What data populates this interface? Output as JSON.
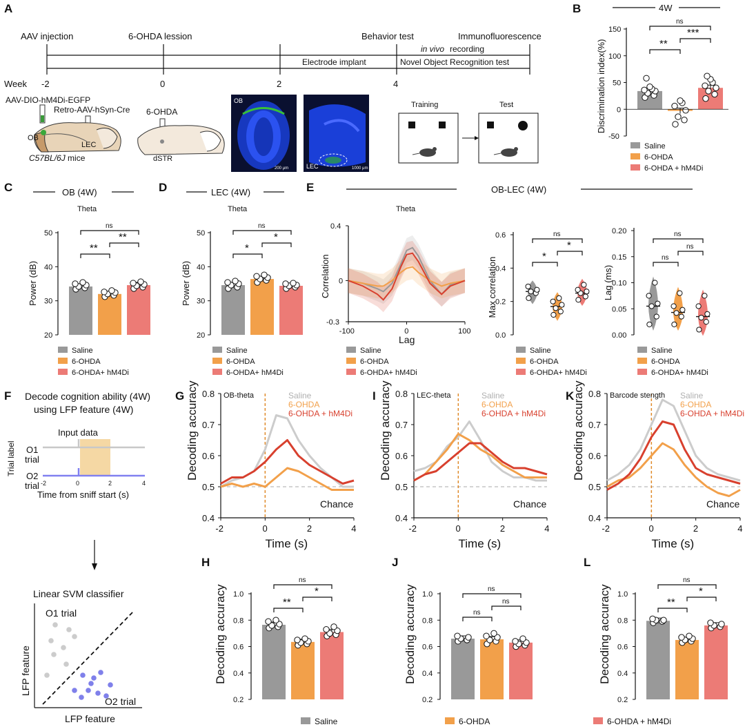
{
  "colors": {
    "saline": "#999999",
    "ohda": "#f2a04a",
    "hm4di": "#ec7b76",
    "hm4di_line": "#d8402e",
    "saline_line": "#cccccc",
    "brain": "#1a3fd8",
    "mouse": "#444444"
  },
  "panelA": {
    "letter": "A",
    "events": [
      "AAV injection",
      "6-OHDA lession",
      "Behavior test",
      "Immunofluorescence"
    ],
    "in_vivo": "in vivo",
    "recording": "recording",
    "electrode": "Electrode implant",
    "novel": "Novel Object Recognition test",
    "week_label": "Week",
    "weeks": [
      "-2",
      "0",
      "2",
      "4"
    ],
    "aav": "AAV-DIO-hM4Di-EGFP",
    "retro": "Retro-AAV-hSyn-Cre",
    "ohda": "6-OHDA",
    "ob": "OB",
    "lec": "LEC",
    "dstr": "dSTR",
    "mice_italic": "C57BL/6J",
    "mice_rest": " mice",
    "img1_label": "OB",
    "img1_scale": "200 μm",
    "img2_label": "LEC",
    "img2_scale": "1000 μm",
    "training": "Training",
    "test": "Test"
  },
  "legend": {
    "saline": "Saline",
    "ohda": "6-OHDA",
    "hm4di": "6-OHDA + hM4Di",
    "hm4di_alt": "6-OHDA+ hM4Di"
  },
  "panelB": {
    "letter": "B",
    "header": "4W",
    "ylabel": "Discrimination index(%)",
    "ticks": [
      "150",
      "100",
      "50",
      "0",
      "-50"
    ],
    "sig": [
      "ns",
      "**",
      "***"
    ],
    "chart_data": {
      "type": "bar",
      "categories": [
        "Saline",
        "6-OHDA",
        "6-OHDA + hM4Di"
      ],
      "values": [
        34,
        -3,
        40
      ],
      "ylim": [
        -50,
        150
      ],
      "points": [
        [
          22,
          26,
          30,
          34,
          36,
          38,
          42,
          58
        ],
        [
          -28,
          -20,
          -14,
          -2,
          6,
          12,
          16
        ],
        [
          20,
          28,
          34,
          40,
          44,
          50,
          56,
          62
        ]
      ]
    }
  },
  "panelC": {
    "letter": "C",
    "header": "OB (4W)",
    "sub": "Theta",
    "ylabel": "Power (dB)",
    "ticks": [
      "50",
      "40",
      "30",
      "20"
    ],
    "sig": [
      "ns",
      "**",
      "**"
    ],
    "chart_data": {
      "type": "bar",
      "categories": [
        "Saline",
        "6-OHDA",
        "6-OHDA+ hM4Di"
      ],
      "values": [
        34.2,
        32.0,
        34.6
      ],
      "ylim": [
        20,
        50
      ],
      "points": [
        [
          33.4,
          33.8,
          34.2,
          34.6,
          35.0,
          35.4
        ],
        [
          31.2,
          31.6,
          32.0,
          32.4,
          32.6,
          33.0
        ],
        [
          33.6,
          34.0,
          34.4,
          34.8,
          35.2,
          35.6
        ]
      ]
    }
  },
  "panelD": {
    "letter": "D",
    "header": "LEC (4W)",
    "sub": "Theta",
    "ylabel": "Power (dB)",
    "ticks": [
      "50",
      "40",
      "30",
      "20"
    ],
    "sig": [
      "ns",
      "*",
      "*"
    ],
    "chart_data": {
      "type": "bar",
      "categories": [
        "Saline",
        "6-OHDA",
        "6-OHDA+ hM4Di"
      ],
      "values": [
        34.6,
        36.4,
        34.4
      ],
      "ylim": [
        20,
        50
      ],
      "points": [
        [
          33.6,
          34.0,
          34.6,
          35.0,
          35.4,
          35.8
        ],
        [
          35.4,
          36.0,
          36.4,
          36.8,
          37.2,
          37.6
        ],
        [
          33.6,
          34.0,
          34.4,
          34.6,
          35.0,
          35.2
        ]
      ]
    }
  },
  "panelE": {
    "letter": "E",
    "header": "OB-LEC (4W)",
    "sub": "Theta",
    "xcorr": {
      "ylabel": "Correlation",
      "xlabel": "Lag",
      "yticks": [
        "0.4",
        "0",
        "-0.3"
      ],
      "xticks": [
        "-100",
        "0",
        "100"
      ],
      "chart_data": {
        "type": "line",
        "x": [
          -100,
          -75,
          -50,
          -40,
          -25,
          -10,
          0,
          10,
          20,
          40,
          60,
          75,
          100
        ],
        "series": [
          {
            "name": "Saline",
            "values": [
              0,
              -0.02,
              -0.06,
              -0.08,
              -0.02,
              0.12,
              0.22,
              0.24,
              0.18,
              0.0,
              -0.1,
              -0.03,
              0
            ]
          },
          {
            "name": "6-OHDA",
            "values": [
              0,
              -0.02,
              -0.04,
              -0.04,
              0.0,
              0.06,
              0.09,
              0.1,
              0.06,
              0,
              -0.04,
              -0.02,
              0
            ]
          },
          {
            "name": "6-OHDA+ hM4Di",
            "values": [
              0,
              -0.04,
              -0.1,
              -0.14,
              -0.06,
              0.1,
              0.19,
              0.2,
              0.14,
              -0.02,
              -0.1,
              -0.04,
              0
            ]
          }
        ],
        "ylim": [
          -0.3,
          0.4
        ],
        "xlim": [
          -100,
          100
        ]
      }
    },
    "maxcorr": {
      "ylabel": "Max correlation",
      "ticks": [
        "0.6",
        "0.4",
        "0.2",
        "0.0"
      ],
      "sig": [
        "ns",
        "*",
        "*"
      ],
      "chart_data": {
        "type": "scatter",
        "categories": [
          "Saline",
          "6-OHDA",
          "6-OHDA+ hM4Di"
        ],
        "medians": [
          0.26,
          0.17,
          0.25
        ],
        "ylim": [
          0,
          0.6
        ],
        "points": [
          [
            0.22,
            0.25,
            0.26,
            0.27,
            0.29
          ],
          [
            0.12,
            0.14,
            0.16,
            0.18,
            0.2,
            0.22
          ],
          [
            0.21,
            0.23,
            0.25,
            0.26,
            0.27,
            0.3
          ]
        ]
      }
    },
    "lag": {
      "ylabel": "Lag (ms)",
      "ticks": [
        "0.20",
        "0.15",
        "0.10",
        "0.05",
        "0.00"
      ],
      "sig": [
        "ns",
        "ns",
        "ns"
      ],
      "chart_data": {
        "type": "scatter",
        "categories": [
          "Saline",
          "6-OHDA",
          "6-OHDA+ hM4Di"
        ],
        "medians": [
          0.055,
          0.043,
          0.035
        ],
        "ylim": [
          0,
          0.2
        ],
        "points": [
          [
            0.02,
            0.035,
            0.055,
            0.06,
            0.075,
            0.1
          ],
          [
            0.02,
            0.035,
            0.042,
            0.048,
            0.055,
            0.08
          ],
          [
            0.01,
            0.025,
            0.033,
            0.04,
            0.055,
            0.075
          ]
        ]
      }
    }
  },
  "panelF": {
    "letter": "F",
    "title1": "Decode cognition ability (4W)",
    "title2": "using LFP feature (4W)",
    "input": "Input data",
    "trial_label": "Trial label",
    "o1": "O1",
    "o2": "O2",
    "trial": "trial",
    "xticks": [
      "-2",
      "0",
      "2",
      "4"
    ],
    "xlabel": "Time from sniff start (s)",
    "svm": "Linear SVM classifier",
    "o1t": "O1 trial",
    "o2t": "O2 trial",
    "lfp": "LFP feature"
  },
  "decoding": {
    "ylabel": "Decoding accuracy",
    "xlabel": "Time (s)",
    "yticks": [
      "0.8",
      "0.7",
      "0.6",
      "0.5",
      "0.4"
    ],
    "xticks": [
      "-2",
      "0",
      "2",
      "4"
    ],
    "chance": "Chance",
    "G": {
      "letter": "G",
      "sub": "OB-theta",
      "chart_data": {
        "type": "line",
        "x": [
          -2,
          -1.5,
          -1,
          -0.5,
          0,
          0.5,
          1,
          1.5,
          2,
          2.5,
          3,
          3.5,
          4
        ],
        "series": [
          {
            "name": "Saline",
            "values": [
              0.5,
              0.52,
              0.53,
              0.55,
              0.62,
              0.73,
              0.72,
              0.65,
              0.6,
              0.56,
              0.53,
              0.5,
              0.5
            ]
          },
          {
            "name": "6-OHDA",
            "values": [
              0.5,
              0.51,
              0.5,
              0.51,
              0.5,
              0.53,
              0.56,
              0.55,
              0.53,
              0.51,
              0.49,
              0.49,
              0.49
            ]
          },
          {
            "name": "6-OHDA + hM4Di",
            "values": [
              0.51,
              0.53,
              0.53,
              0.55,
              0.58,
              0.62,
              0.65,
              0.6,
              0.57,
              0.55,
              0.53,
              0.51,
              0.52
            ]
          }
        ],
        "ylim": [
          0.4,
          0.8
        ],
        "xlim": [
          -2,
          4
        ]
      }
    },
    "I": {
      "letter": "I",
      "sub": "LEC-theta",
      "chart_data": {
        "type": "line",
        "x": [
          -2,
          -1.5,
          -1,
          -0.5,
          0,
          0.5,
          1,
          1.5,
          2,
          2.5,
          3,
          3.5,
          4
        ],
        "series": [
          {
            "name": "Saline",
            "values": [
              0.55,
              0.56,
              0.58,
              0.63,
              0.66,
              0.71,
              0.65,
              0.58,
              0.55,
              0.53,
              0.53,
              0.52,
              0.52
            ]
          },
          {
            "name": "6-OHDA",
            "values": [
              0.52,
              0.54,
              0.58,
              0.62,
              0.67,
              0.65,
              0.62,
              0.6,
              0.57,
              0.55,
              0.53,
              0.53,
              0.53
            ]
          },
          {
            "name": "6-OHDA + hM4Di",
            "values": [
              0.52,
              0.54,
              0.55,
              0.58,
              0.61,
              0.64,
              0.64,
              0.61,
              0.58,
              0.56,
              0.56,
              0.55,
              0.54
            ]
          }
        ],
        "ylim": [
          0.4,
          0.8
        ],
        "xlim": [
          -2,
          4
        ]
      }
    },
    "K": {
      "letter": "K",
      "sub": "Barcode stength",
      "chart_data": {
        "type": "line",
        "x": [
          -2,
          -1.5,
          -1,
          -0.5,
          0,
          0.5,
          1,
          1.5,
          2,
          2.5,
          3,
          3.5,
          4
        ],
        "series": [
          {
            "name": "Saline",
            "values": [
              0.52,
              0.54,
              0.57,
              0.62,
              0.7,
              0.78,
              0.76,
              0.68,
              0.6,
              0.56,
              0.54,
              0.53,
              0.52
            ]
          },
          {
            "name": "6-OHDA",
            "values": [
              0.5,
              0.52,
              0.53,
              0.56,
              0.6,
              0.64,
              0.62,
              0.57,
              0.53,
              0.5,
              0.48,
              0.47,
              0.49
            ]
          },
          {
            "name": "6-OHDA + hM4Di",
            "values": [
              0.49,
              0.51,
              0.54,
              0.59,
              0.66,
              0.71,
              0.7,
              0.62,
              0.56,
              0.54,
              0.53,
              0.52,
              0.51
            ]
          }
        ],
        "ylim": [
          0.4,
          0.8
        ],
        "xlim": [
          -2,
          4
        ]
      }
    },
    "barticks": [
      "1.0",
      "0.8",
      "0.6",
      "0.4",
      "0.2"
    ],
    "H": {
      "letter": "H",
      "sig": [
        "ns",
        "**",
        "*"
      ],
      "chart_data": {
        "type": "bar",
        "categories": [
          "Saline",
          "6-OHDA",
          "6-OHDA + hM4Di"
        ],
        "values": [
          0.765,
          0.635,
          0.71
        ],
        "ylim": [
          0.2,
          1.0
        ],
        "points": [
          [
            0.74,
            0.75,
            0.76,
            0.77,
            0.79,
            0.8
          ],
          [
            0.61,
            0.62,
            0.63,
            0.64,
            0.65,
            0.66
          ],
          [
            0.68,
            0.69,
            0.7,
            0.72,
            0.73,
            0.75
          ]
        ]
      }
    },
    "J": {
      "letter": "J",
      "sig": [
        "ns",
        "ns",
        "ns"
      ],
      "chart_data": {
        "type": "bar",
        "categories": [
          "Saline",
          "6-OHDA",
          "6-OHDA + hM4Di"
        ],
        "values": [
          0.66,
          0.655,
          0.63
        ],
        "ylim": [
          0.2,
          1.0
        ],
        "points": [
          [
            0.64,
            0.65,
            0.66,
            0.67,
            0.68
          ],
          [
            0.62,
            0.64,
            0.65,
            0.67,
            0.68,
            0.7
          ],
          [
            0.6,
            0.61,
            0.62,
            0.63,
            0.64,
            0.66
          ]
        ]
      }
    },
    "L": {
      "letter": "L",
      "sig": [
        "ns",
        "**",
        "*"
      ],
      "chart_data": {
        "type": "bar",
        "categories": [
          "Saline",
          "6-OHDA",
          "6-OHDA + hM4Di"
        ],
        "values": [
          0.795,
          0.65,
          0.76
        ],
        "ylim": [
          0.2,
          1.0
        ],
        "points": [
          [
            0.78,
            0.79,
            0.8,
            0.8,
            0.81
          ],
          [
            0.63,
            0.64,
            0.65,
            0.66,
            0.67,
            0.68
          ],
          [
            0.74,
            0.75,
            0.76,
            0.77,
            0.78
          ]
        ]
      }
    },
    "legend": [
      "Saline",
      "6-OHDA",
      "6-OHDA + hM4Di"
    ]
  }
}
